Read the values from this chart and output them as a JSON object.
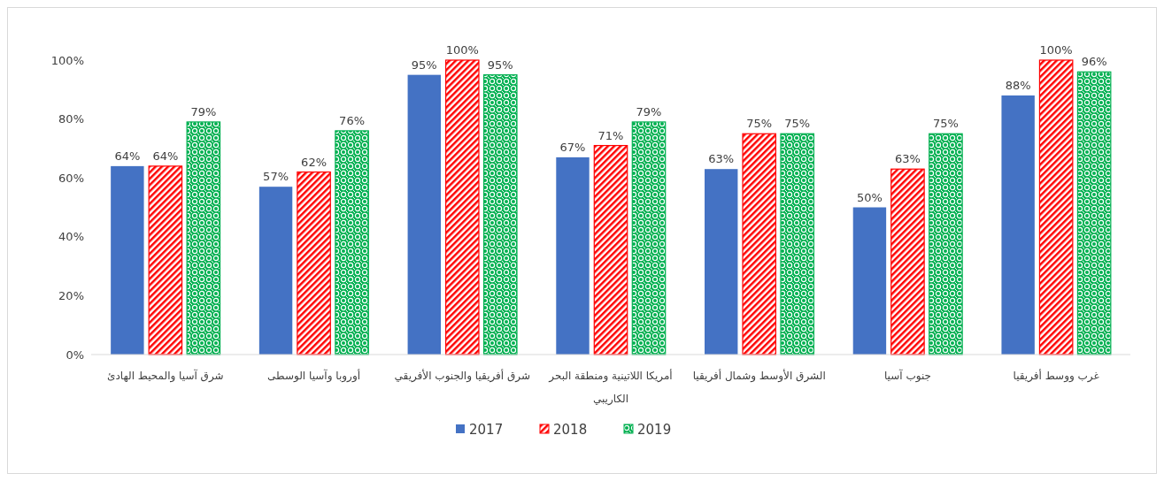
{
  "chart_data": {
    "type": "bar",
    "categories": [
      "شرق آسيا والمحيط الهادئ",
      "أوروبا وآسيا الوسطى",
      "شرق أفريقيا والجنوب الأفريقي",
      "أمريكا اللاتينية ومنطقة البحر الكاريبي",
      "الشرق الأوسط وشمال أفريقيا",
      "جنوب آسيا",
      "غرب ووسط أفريقيا"
    ],
    "series": [
      {
        "name": "2017",
        "color": "#4472c4",
        "values": [
          64,
          57,
          95,
          67,
          63,
          50,
          88
        ],
        "value_labels": [
          "64%",
          "57%",
          "95%",
          "67%",
          "63%",
          "50%",
          "88%"
        ]
      },
      {
        "name": "2018",
        "color": "#ff0000",
        "values": [
          64,
          62,
          100,
          71,
          75,
          63,
          100
        ],
        "value_labels": [
          "64%",
          "62%",
          "100%",
          "71%",
          "75%",
          "63%",
          "100%"
        ]
      },
      {
        "name": "2019",
        "color": "#00b050",
        "values": [
          79,
          76,
          95,
          79,
          75,
          75,
          96
        ],
        "value_labels": [
          "79%",
          "76%",
          "95%",
          "79%",
          "75%",
          "75%",
          "96%"
        ]
      }
    ],
    "ylim": [
      0,
      100
    ],
    "yticks": [
      {
        "value": 0,
        "label": "0%"
      },
      {
        "value": 20,
        "label": "20%"
      },
      {
        "value": 40,
        "label": "40%"
      },
      {
        "value": 60,
        "label": "60%"
      },
      {
        "value": 80,
        "label": "80%"
      },
      {
        "value": 100,
        "label": "100%"
      }
    ],
    "grid": false,
    "legend": "bottom"
  }
}
